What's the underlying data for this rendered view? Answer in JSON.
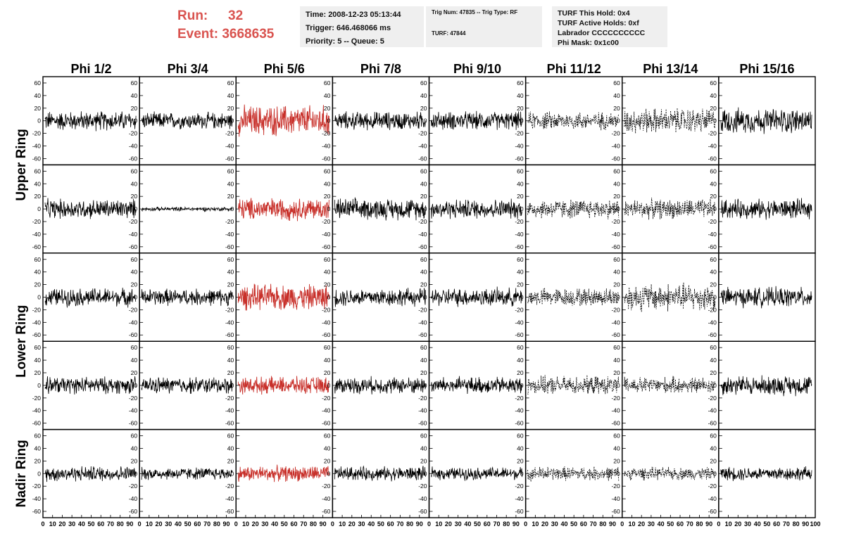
{
  "header": {
    "run_label": "Run:",
    "run_value": "32",
    "event_label": "Event:",
    "event_value": "3668635",
    "time": "Time: 2008-12-23 05:13:44",
    "trigger": "Trigger: 646.468066 ms",
    "priority": "Priority: 5 -- Queue: 5",
    "trig_num": "Trig Num: 47835 -- Trig Type: RF",
    "turf": "TURF: 47844",
    "turf_this_hold": "TURF This Hold: 0x4",
    "turf_active_holds": "TURF Active Holds: 0xf",
    "labrador": "Labrador CCCCCCCCCC",
    "phi_mask": "Phi Mask: 0x1c00"
  },
  "colors": {
    "red_trace": "#c8302a",
    "black_trace": "#000000",
    "title_red": "#d9534f"
  },
  "chart_data": {
    "type": "line",
    "columns": [
      "Phi 1/2",
      "Phi 3/4",
      "Phi 5/6",
      "Phi 7/8",
      "Phi 9/10",
      "Phi 11/12",
      "Phi 13/14",
      "Phi 15/16"
    ],
    "row_groups": [
      "Upper Ring",
      "Lower Ring",
      "Nadir Ring"
    ],
    "rows": 5,
    "ylim": [
      -70,
      70
    ],
    "yticks": [
      -60,
      -40,
      -20,
      0,
      20,
      40,
      60
    ],
    "xlim": [
      0,
      100
    ],
    "xticks": [
      0,
      10,
      20,
      30,
      40,
      50,
      60,
      70,
      80,
      90,
      100
    ],
    "xtick_text": [
      "0",
      "10",
      "20",
      "30",
      "40",
      "50",
      "60",
      "70",
      "80",
      "90",
      "100"
    ],
    "red_column": 2,
    "dashed_columns": [
      5,
      6
    ],
    "panels": [
      [
        14,
        12,
        22,
        13,
        13,
        13,
        18,
        18
      ],
      [
        14,
        3,
        16,
        15,
        14,
        14,
        14,
        14
      ],
      [
        13,
        12,
        18,
        13,
        13,
        13,
        20,
        14
      ],
      [
        12,
        12,
        12,
        12,
        12,
        13,
        12,
        14
      ],
      [
        11,
        9,
        11,
        10,
        9,
        10,
        9,
        10
      ]
    ]
  }
}
